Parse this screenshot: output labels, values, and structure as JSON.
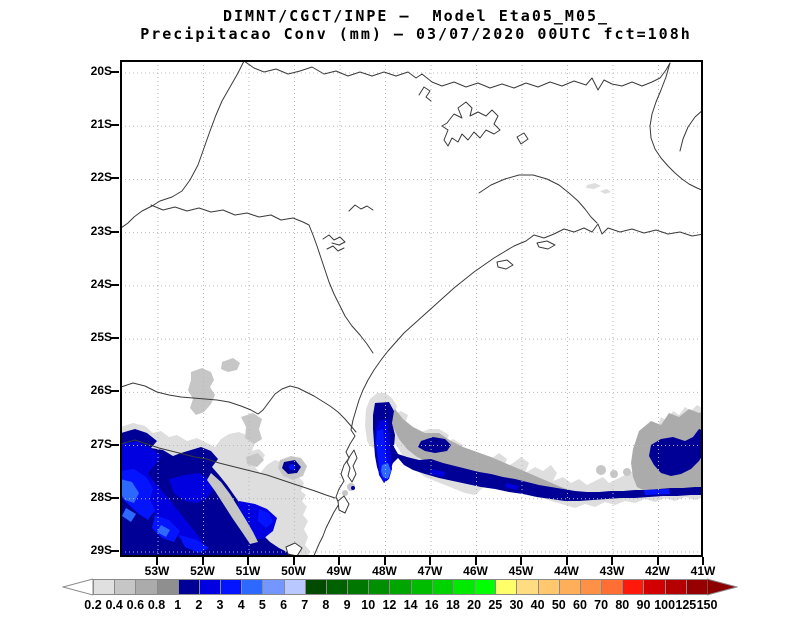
{
  "title": {
    "line1": "DIMNT/CGCT/INPE —  Model Eta05_M05_",
    "line2": "Precipitacao Conv (mm) — 03/07/2020 00UTC fct=108h"
  },
  "map": {
    "lat_labels": [
      "20S",
      "21S",
      "22S",
      "23S",
      "24S",
      "25S",
      "26S",
      "27S",
      "28S",
      "29S"
    ],
    "lon_labels": [
      "53W",
      "52W",
      "51W",
      "50W",
      "49W",
      "48W",
      "47W",
      "46W",
      "45W",
      "44W",
      "43W",
      "42W",
      "41W"
    ],
    "variable": "Precipitacao Conv (mm)",
    "model": "Eta05_M05",
    "run": "03/07/2020 00UTC",
    "forecast": "fct=108h"
  },
  "colorbar": {
    "boundaries": [
      "0.2",
      "0.4",
      "0.6",
      "0.8",
      "1",
      "2",
      "3",
      "4",
      "5",
      "6",
      "7",
      "8",
      "9",
      "10",
      "12",
      "14",
      "16",
      "18",
      "20",
      "25",
      "30",
      "40",
      "50",
      "60",
      "70",
      "80",
      "90",
      "100",
      "125",
      "150"
    ],
    "cell_colors": [
      "#e0e0e0",
      "#c6c6c6",
      "#ababab",
      "#8f8f8f",
      "#000096",
      "#0000e1",
      "#0514ff",
      "#2e69ff",
      "#7396ff",
      "#b9c8ff",
      "#004b00",
      "#006100",
      "#007800",
      "#008f00",
      "#00a500",
      "#00bc00",
      "#00d200",
      "#00e900",
      "#00ff00",
      "#ffff69",
      "#ffdc82",
      "#ffc86e",
      "#ffaf5a",
      "#ff9146",
      "#ff6e32",
      "#ff190a",
      "#d20000",
      "#b40000",
      "#960000"
    ],
    "left_arrow_color": "#ffffff",
    "right_arrow_color": "#8c0000",
    "units": "mm"
  },
  "palette": {
    "gray1": "#dedede",
    "gray2": "#c6c6c6",
    "gray3": "#ababab",
    "navy": "#000096",
    "blue2": "#0000e1",
    "blue3": "#0514ff",
    "blue4": "#2e69ff"
  },
  "grid_color": "#b8b8b8",
  "boundary_color": "#3a3a3a"
}
